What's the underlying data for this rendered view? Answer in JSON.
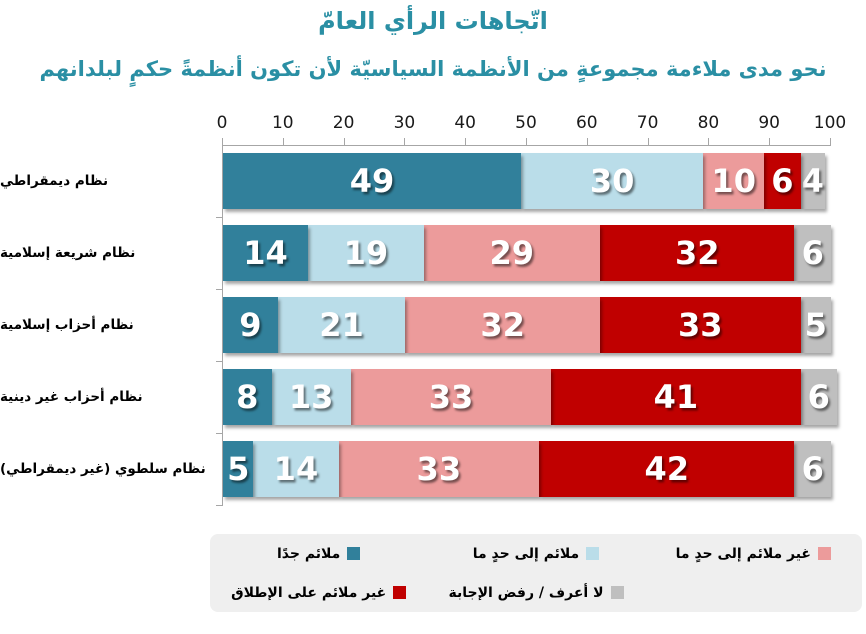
{
  "colors": {
    "title": "#2A8FA4",
    "axis": "#A6A6A6",
    "legend_bg": "#EFEFEF",
    "category_label": "#000000",
    "value_label": "#FFFFFF"
  },
  "chart_data": {
    "type": "bar",
    "orientation": "horizontal-stacked",
    "title": "اتّجاهات الرأي العامّ",
    "subtitle": "نحو مدى ملاءمة مجموعةٍ من الأنظمة السياسيّة لأن تكون أنظمةً حكمٍ لبلدانهم",
    "categories": [
      "نظام ديمقراطي",
      "نظام شريعة إسلامية",
      "نظام أحزاب إسلامية",
      "نظام أحزاب غير دينية",
      "نظام سلطوي (غير ديمقراطي)"
    ],
    "series": [
      {
        "name": "ملائم جدًا",
        "color": "#31809B",
        "values": [
          49,
          14,
          9,
          8,
          5
        ]
      },
      {
        "name": "ملائم إلى حدٍ ما",
        "color": "#BADDE9",
        "values": [
          30,
          19,
          21,
          13,
          14
        ]
      },
      {
        "name": "غير ملائم إلى حدٍ ما",
        "color": "#EC9B9B",
        "values": [
          10,
          29,
          32,
          33,
          33
        ]
      },
      {
        "name": "غير ملائم على الإطلاق",
        "color": "#C00000",
        "values": [
          6,
          32,
          33,
          41,
          42
        ]
      },
      {
        "name": "لا أعرف / رفض الإجابة",
        "color": "#BFBFBF",
        "values": [
          4,
          6,
          5,
          6,
          6
        ]
      }
    ],
    "xaxis": {
      "min": 0,
      "max": 100,
      "tick_step": 10,
      "position": "top",
      "ticks": [
        0,
        10,
        20,
        30,
        40,
        50,
        60,
        70,
        80,
        90,
        100
      ]
    },
    "grid": "off",
    "legend_position": "bottom",
    "legend_rows": [
      [
        0,
        1,
        2
      ],
      [
        3,
        4
      ]
    ],
    "value_labels": "inside-center"
  }
}
